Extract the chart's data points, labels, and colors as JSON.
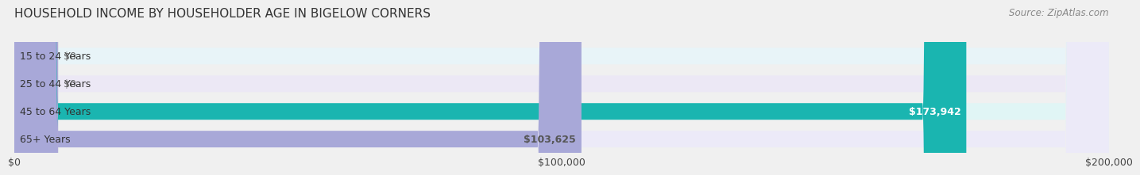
{
  "title": "HOUSEHOLD INCOME BY HOUSEHOLDER AGE IN BIGELOW CORNERS",
  "source": "Source: ZipAtlas.com",
  "categories": [
    "15 to 24 Years",
    "25 to 44 Years",
    "45 to 64 Years",
    "65+ Years"
  ],
  "values": [
    0,
    0,
    173942,
    103625
  ],
  "bar_colors": [
    "#7ec8d8",
    "#b0a8d8",
    "#1ab5b0",
    "#a8a8d8"
  ],
  "bar_bg_colors": [
    "#e8f4f8",
    "#ece8f5",
    "#e0f5f5",
    "#eceaf8"
  ],
  "value_labels": [
    "$0",
    "$0",
    "$173,942",
    "$103,625"
  ],
  "value_label_colors": [
    "#666666",
    "#666666",
    "#ffffff",
    "#555555"
  ],
  "xlim": [
    0,
    200000
  ],
  "xticks": [
    0,
    100000,
    200000
  ],
  "xtick_labels": [
    "$0",
    "$100,000",
    "$200,000"
  ],
  "title_fontsize": 11,
  "source_fontsize": 8.5,
  "label_fontsize": 9,
  "value_fontsize": 9,
  "tick_fontsize": 9,
  "background_color": "#f0f0f0",
  "bar_bg_alpha": 1.0,
  "bar_height": 0.6,
  "figsize": [
    14.06,
    2.33
  ]
}
